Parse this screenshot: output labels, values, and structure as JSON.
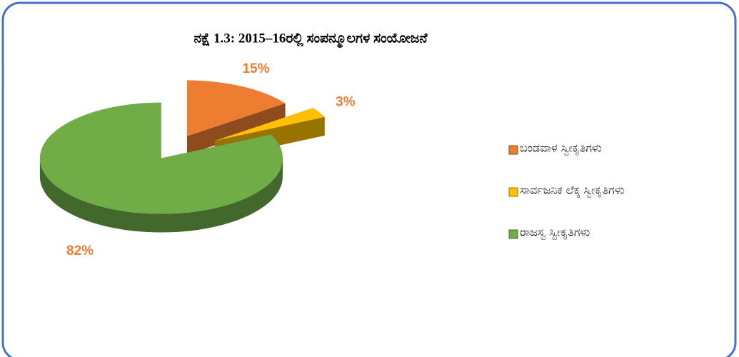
{
  "chart_data": {
    "type": "pie",
    "title": "ನಕ್ಷೆ 1.3: 2015–16ರಲ್ಲಿ ಸಂಪನ್ಮೂಲಗಳ ಸಂಯೋಜನೆ",
    "categories": [
      "ಬಂಡವಾಳ ಸ್ವೀಕೃತಿಗಳು",
      "ಸಾರ್ವಜನಿಕ ಲೆಕ್ಕ ಸ್ವೀಕೃತಿಗಳು",
      "ರಾಜಸ್ವ ಸ್ವೀಕೃತಿಗಳು"
    ],
    "values": [
      15,
      3,
      82
    ],
    "value_labels": [
      "15%",
      "3%",
      "82%"
    ],
    "colors": [
      "#ed7d31",
      "#ffc000",
      "#70ad47"
    ],
    "legend": "right"
  }
}
